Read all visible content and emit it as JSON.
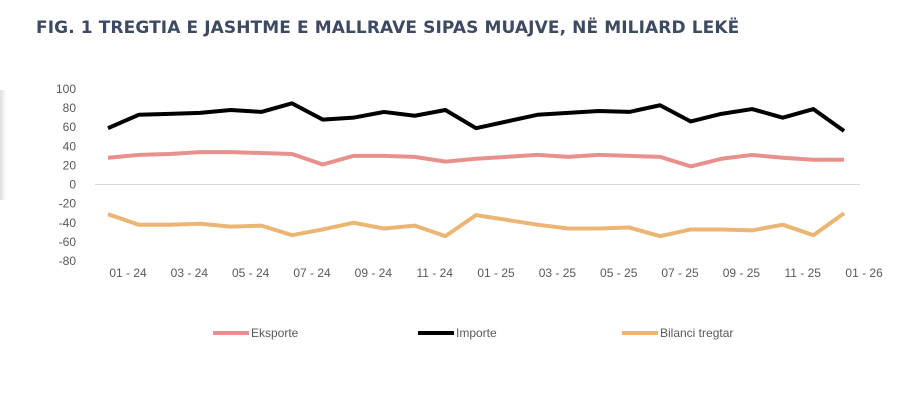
{
  "chart_data": {
    "type": "line",
    "title": "FIG. 1 TREGTIA E JASHTME E MALLRAVE SIPAS MUAJVE, NË MILIARD LEKË",
    "xlabel": "",
    "ylabel": "",
    "ylim": [
      -80,
      100
    ],
    "yticks": [
      100,
      80,
      60,
      40,
      20,
      0,
      -20,
      -40,
      -60,
      -80
    ],
    "xtick_labels": [
      "01 - 24",
      "03 - 24",
      "05 - 24",
      "07 - 24",
      "09 - 24",
      "11 - 24",
      "01 - 25",
      "03 - 25",
      "05 - 25",
      "07 - 25",
      "09 - 25",
      "11 - 25",
      "01 - 26"
    ],
    "x": [
      "01-24",
      "02-24",
      "03-24",
      "04-24",
      "05-24",
      "06-24",
      "07-24",
      "08-24",
      "09-24",
      "10-24",
      "11-24",
      "12-24",
      "01-25",
      "02-25",
      "03-25",
      "04-25",
      "05-25",
      "06-25",
      "07-25",
      "08-25",
      "09-25",
      "10-25",
      "11-25",
      "12-25",
      "01-26"
    ],
    "legend_position": "bottom",
    "series": [
      {
        "name": "Eksporte",
        "color": "#e8908c",
        "values": [
          28,
          31,
          32,
          34,
          34,
          33,
          32,
          21,
          30,
          30,
          29,
          24,
          27,
          29,
          31,
          29,
          31,
          30,
          29,
          19,
          27,
          31,
          28,
          26,
          26
        ]
      },
      {
        "name": "Importe",
        "color": "#000000",
        "values": [
          59,
          73,
          74,
          75,
          78,
          76,
          85,
          68,
          70,
          76,
          72,
          78,
          59,
          66,
          73,
          75,
          77,
          76,
          83,
          66,
          74,
          79,
          70,
          79,
          56
        ]
      },
      {
        "name": "Bilanci tregtar",
        "color": "#ebb574",
        "values": [
          -31,
          -42,
          -42,
          -41,
          -44,
          -43,
          -53,
          -47,
          -40,
          -46,
          -43,
          -54,
          -32,
          -37,
          -42,
          -46,
          -46,
          -45,
          -54,
          -47,
          -47,
          -48,
          -42,
          -53,
          -30
        ]
      }
    ]
  }
}
